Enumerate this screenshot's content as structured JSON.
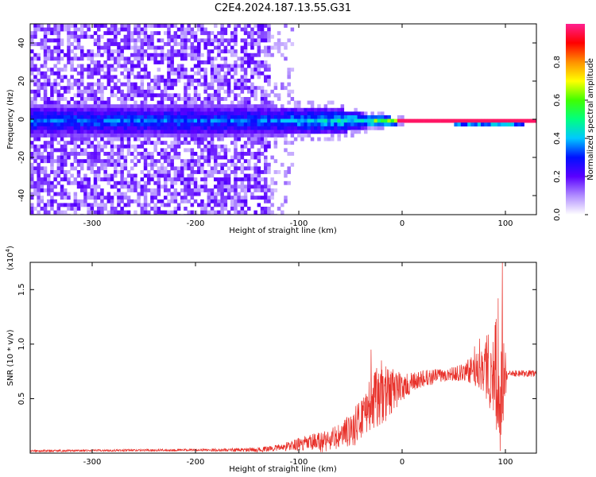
{
  "figure": {
    "title": "C2E4.2024.187.13.55.G31"
  },
  "chart_data": [
    {
      "type": "heatmap",
      "xlabel": "Height of straight line (km)",
      "ylabel": "Frequency (Hz)",
      "xlim": [
        -360,
        130
      ],
      "ylim": [
        -50,
        50
      ],
      "xticks": [
        -300,
        -200,
        -100,
        0,
        100
      ],
      "yticks": [
        -40,
        -20,
        0,
        20,
        40
      ],
      "colorbar": {
        "label": "Normalized spectral amplitude",
        "range": [
          0,
          1
        ],
        "ticks": [
          "0.0",
          "0.2",
          "0.4",
          "0.6",
          "0.8"
        ],
        "colors": [
          "#ffffff",
          "#b08cff",
          "#5a00ff",
          "#0010ff",
          "#00c8ff",
          "#00ff80",
          "#40ff00",
          "#ffff00",
          "#ff9000",
          "#ff0000",
          "#ff2090"
        ]
      },
      "band": {
        "noise_region_x": [
          -360,
          -130
        ],
        "transition_x": [
          -130,
          -105
        ],
        "signal_center_hz": 0,
        "signal_halfwidth_hz": [
          [
            -130,
            8
          ],
          [
            -60,
            6
          ],
          [
            -30,
            3
          ],
          [
            0,
            1.5
          ],
          [
            100,
            2
          ],
          [
            130,
            1.5
          ]
        ],
        "peak_amplitude": [
          [
            -130,
            0.4
          ],
          [
            -80,
            0.5
          ],
          [
            -40,
            0.55
          ],
          [
            -5,
            0.9
          ],
          [
            0,
            1.0
          ],
          [
            130,
            1.0
          ]
        ]
      },
      "grid": false
    },
    {
      "type": "line",
      "xlabel": "Height of straight line (km)",
      "ylabel": "SNR (10 * v/v)",
      "y_multiplier": "(x10",
      "y_multiplier_exp": "4",
      "y_multiplier_close": ")",
      "xlim": [
        -360,
        130
      ],
      "ylim": [
        0,
        1.75
      ],
      "xticks": [
        -300,
        -200,
        -100,
        0,
        100
      ],
      "yticks": [
        "0.5",
        "1.0",
        "1.5"
      ],
      "color": "#e8312a",
      "grid": false,
      "envelope": {
        "x": [
          -360,
          -200,
          -140,
          -120,
          -100,
          -80,
          -60,
          -45,
          -35,
          -25,
          -15,
          -5,
          0,
          20,
          40,
          60,
          70,
          80,
          85,
          90,
          95,
          98,
          102,
          130
        ],
        "base": [
          0.02,
          0.03,
          0.03,
          0.05,
          0.08,
          0.1,
          0.15,
          0.25,
          0.4,
          0.5,
          0.55,
          0.6,
          0.6,
          0.68,
          0.72,
          0.74,
          0.77,
          0.8,
          0.78,
          0.74,
          0.72,
          0.72,
          0.73,
          0.73
        ],
        "amp": [
          0.01,
          0.01,
          0.02,
          0.03,
          0.06,
          0.1,
          0.12,
          0.18,
          0.22,
          0.28,
          0.25,
          0.18,
          0.12,
          0.08,
          0.06,
          0.08,
          0.15,
          0.25,
          0.4,
          0.5,
          0.6,
          0.45,
          0.03,
          0.03
        ]
      },
      "spikes": [
        {
          "x": -30,
          "y": 0.95
        },
        {
          "x": -25,
          "y": 0.72
        },
        {
          "x": -20,
          "y": 0.85
        },
        {
          "x": -10,
          "y": 0.68
        },
        {
          "x": 70,
          "y": 0.98
        },
        {
          "x": 75,
          "y": 1.05
        },
        {
          "x": 82,
          "y": 1.08
        },
        {
          "x": 88,
          "y": 1.02
        },
        {
          "x": 93,
          "y": 1.42
        },
        {
          "x": 97,
          "y": 1.75
        },
        {
          "x": 95,
          "y": 0.02
        },
        {
          "x": 98,
          "y": 0.3
        }
      ]
    }
  ]
}
